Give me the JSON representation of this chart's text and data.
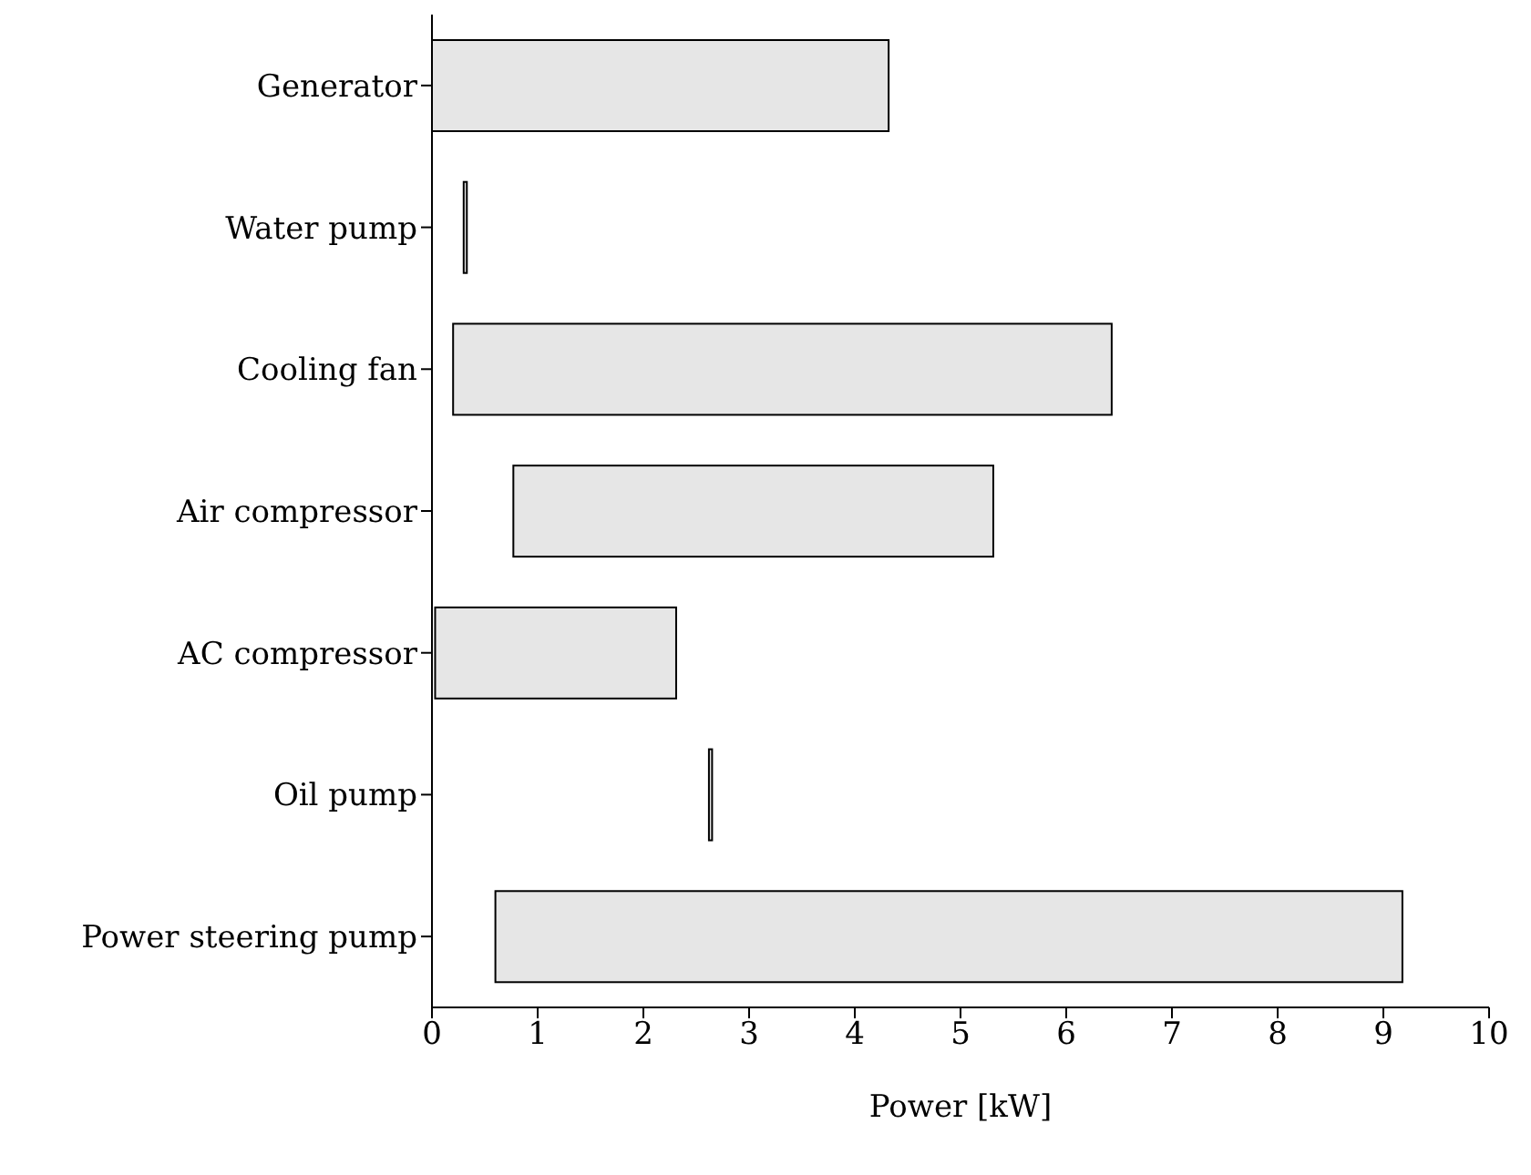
{
  "chart_data": {
    "type": "bar",
    "orientation": "horizontal",
    "xlabel": "Power [kW]",
    "categories": [
      "Generator",
      "Water pump",
      "Cooling fan",
      "Air compressor",
      "AC compressor",
      "Oil pump",
      "Power steering pump"
    ],
    "base": [
      0,
      0.3,
      0.2,
      0.77,
      0.03,
      2.62,
      0.6
    ],
    "values": [
      4.32,
      0.03,
      6.23,
      4.54,
      2.28,
      0.03,
      8.58
    ],
    "color": "#e6e6e6",
    "xlim": [
      0,
      10
    ],
    "xticks": [
      0,
      1,
      2,
      3,
      4,
      5,
      6,
      7,
      8,
      9,
      10
    ],
    "grid": false
  }
}
